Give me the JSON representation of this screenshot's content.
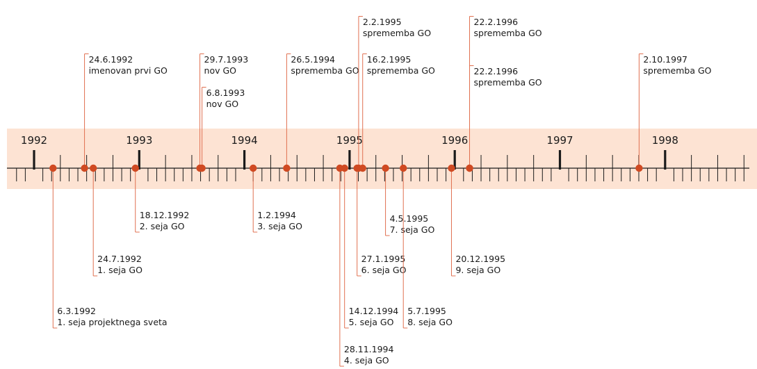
{
  "colors": {
    "band": "#fde3d3",
    "accent": "#d04a22",
    "leader": "#e07050",
    "axis": "#1a1a1a",
    "text": "#1a1a1a"
  },
  "timeline": {
    "start_year": 1992,
    "end_year": 1998,
    "years": [
      "1992",
      "1993",
      "1994",
      "1995",
      "1996",
      "1997",
      "1998"
    ],
    "month_ticks_per_year": 12
  },
  "events": [
    {
      "date": "6.3.1992",
      "label": "1. seja projektnega sveta",
      "side": "below",
      "tier": 5
    },
    {
      "date": "24.6.1992",
      "label": "imenovan prvi GO",
      "side": "above",
      "tier": 3
    },
    {
      "date": "24.7.1992",
      "label": "1. seja GO",
      "side": "below",
      "tier": 3
    },
    {
      "date": "18.12.1992",
      "label": "2. seja GO",
      "side": "below",
      "tier": 1
    },
    {
      "date": "29.7.1993",
      "label": "nov GO",
      "side": "above",
      "tier": 3
    },
    {
      "date": "6.8.1993",
      "label": "nov GO",
      "side": "above",
      "tier": 2
    },
    {
      "date": "1.2.1994",
      "label": "3. seja GO",
      "side": "below",
      "tier": 1
    },
    {
      "date": "26.5.1994",
      "label": "sprememba GO",
      "side": "above",
      "tier": 3
    },
    {
      "date": "28.11.1994",
      "label": "4. seja GO",
      "side": "below",
      "tier": 6
    },
    {
      "date": "14.12.1994",
      "label": "5. seja GO",
      "side": "below",
      "tier": 5
    },
    {
      "date": "27.1.1995",
      "label": "6. seja GO",
      "side": "below",
      "tier": 3
    },
    {
      "date": "2.2.1995",
      "label": "sprememba GO",
      "side": "above",
      "tier": 5
    },
    {
      "date": "16.2.1995",
      "label": "sprememba GO",
      "side": "above",
      "tier": 3
    },
    {
      "date": "4.5.1995",
      "label": "7. seja GO",
      "side": "below",
      "tier": 2
    },
    {
      "date": "5.7.1995",
      "label": "8. seja GO",
      "side": "below",
      "tier": 5
    },
    {
      "date": "20.12.1995",
      "label": "9. seja GO",
      "side": "below",
      "tier": 3
    },
    {
      "date": "22.2.1996",
      "label": "sprememba GO",
      "side": "above",
      "tier": 5
    },
    {
      "date": "22.2.1996",
      "label": "sprememba GO",
      "side": "above",
      "tier": 4
    },
    {
      "date": "2.10.1997",
      "label": "sprememba  GO",
      "side": "above",
      "tier": 3
    }
  ]
}
